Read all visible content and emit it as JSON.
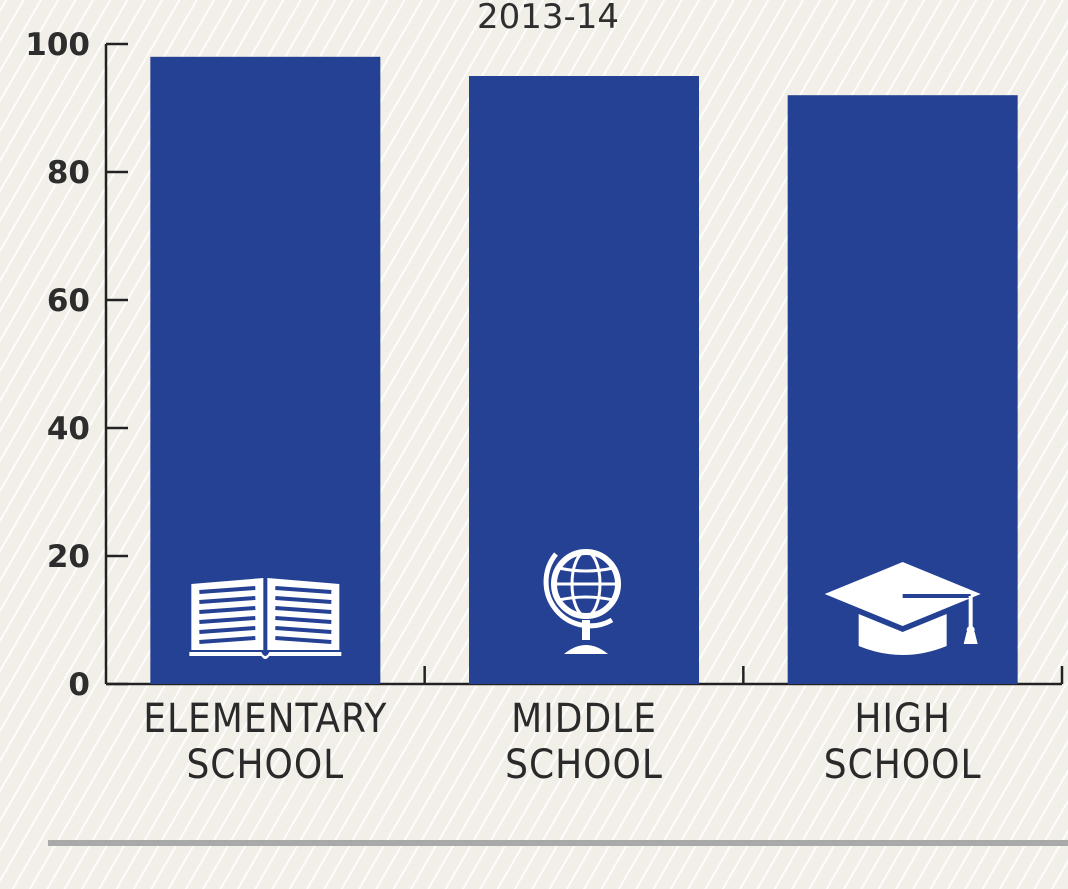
{
  "chart_data": {
    "type": "bar",
    "title": "",
    "subtitle": "2013-14",
    "xlabel": "",
    "ylabel": "",
    "ylim": [
      0,
      100
    ],
    "yticks": [
      0,
      20,
      40,
      60,
      80,
      100
    ],
    "grid": false,
    "categories": [
      "ELEMENTARY SCHOOL",
      "MIDDLE SCHOOL",
      "HIGH SCHOOL"
    ],
    "category_lines": [
      [
        "ELEMENTARY",
        "SCHOOL"
      ],
      [
        "MIDDLE",
        "SCHOOL"
      ],
      [
        "HIGH",
        "SCHOOL"
      ]
    ],
    "values": [
      98,
      95,
      92
    ],
    "bar_icons": [
      "open-book-icon",
      "globe-icon",
      "graduation-cap-icon"
    ],
    "colors": {
      "bar": "#254193",
      "axis": "#222222",
      "icon": "#ffffff",
      "background": "#f1efe8",
      "footer_rule": "#a9a9a9"
    }
  }
}
